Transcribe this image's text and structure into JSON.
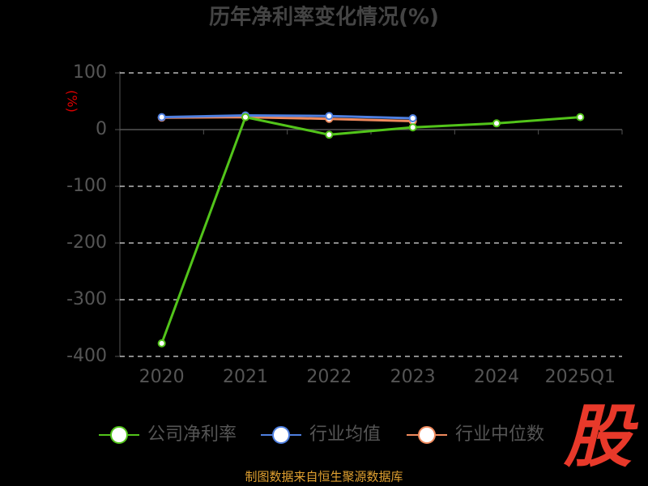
{
  "chart_data": {
    "type": "line",
    "title": "历年净利率变化情况(%)",
    "y_label": "(%)",
    "categories": [
      "2020",
      "2021",
      "2022",
      "2023",
      "2024",
      "2025Q1"
    ],
    "series": [
      {
        "name": "公司净利率",
        "color": "#52c41a",
        "values": [
          -377,
          22,
          -9,
          4,
          11,
          22
        ]
      },
      {
        "name": "行业均值",
        "color": "#4e7fe0",
        "values": [
          22,
          25,
          24,
          20,
          null,
          null
        ]
      },
      {
        "name": "行业中位数",
        "color": "#f08a5d",
        "values": [
          21,
          22,
          19,
          15,
          null,
          null
        ]
      }
    ],
    "ylim": [
      -400,
      100
    ],
    "yticks": [
      -400,
      -300,
      -200,
      -100,
      0,
      100
    ],
    "grid": true,
    "legend": "bottom",
    "footer": "制图数据来自恒生聚源数据库",
    "logo": "股"
  }
}
